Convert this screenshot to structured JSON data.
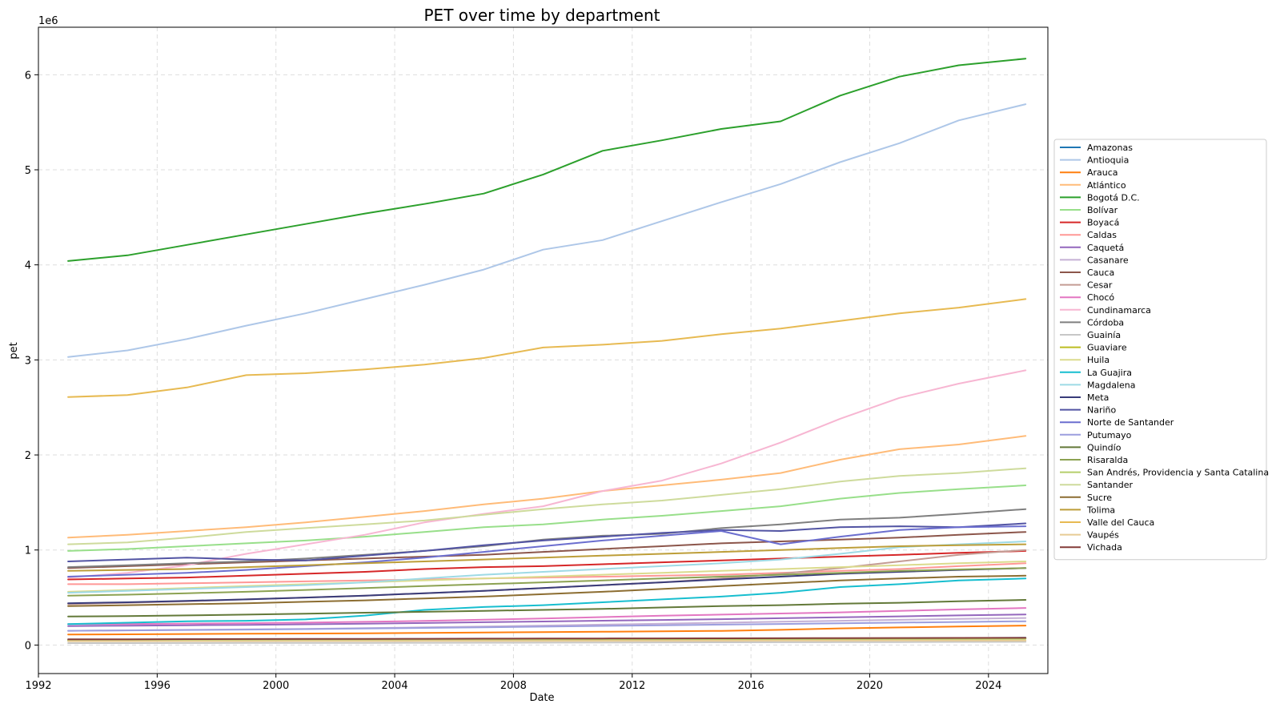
{
  "chart_data": {
    "type": "line",
    "title": "PET over time by department",
    "xlabel": "Date",
    "ylabel": "pet",
    "y_offset_label": "1e6",
    "x_ticks": [
      "1992",
      "1996",
      "2000",
      "2004",
      "2008",
      "2012",
      "2016",
      "2020",
      "2024"
    ],
    "y_ticks": [
      "0",
      "1",
      "2",
      "3",
      "4",
      "5",
      "6"
    ],
    "xlim": [
      1992.0,
      2026.0
    ],
    "ylim": [
      -300000,
      6500000
    ],
    "grid": true,
    "legend_position": "right",
    "x": [
      1993,
      1995,
      1997,
      1999,
      2001,
      2003,
      2005,
      2007,
      2009,
      2011,
      2013,
      2015,
      2017,
      2019,
      2021,
      2023,
      2025.25
    ],
    "series": [
      {
        "name": "Amazonas",
        "color": "#1f77b4",
        "values": [
          46000,
          47000,
          48000,
          49000,
          50000,
          51000,
          53000,
          55000,
          57000,
          59000,
          61000,
          63000,
          65000,
          68000,
          71000,
          74000,
          77000
        ]
      },
      {
        "name": "Antioquia",
        "color": "#aec7e8",
        "values": [
          3030000,
          3100000,
          3220000,
          3360000,
          3490000,
          3640000,
          3790000,
          3950000,
          4160000,
          4260000,
          4460000,
          4660000,
          4850000,
          5080000,
          5280000,
          5520000,
          5690000
        ]
      },
      {
        "name": "Arauca",
        "color": "#ff7f0e",
        "values": [
          110000,
          113000,
          116000,
          119000,
          121000,
          124000,
          128000,
          132000,
          136000,
          140000,
          144000,
          149000,
          160000,
          175000,
          185000,
          195000,
          205000
        ]
      },
      {
        "name": "Atlántico",
        "color": "#ffbb78",
        "values": [
          1130000,
          1160000,
          1200000,
          1240000,
          1290000,
          1350000,
          1410000,
          1480000,
          1540000,
          1620000,
          1680000,
          1740000,
          1810000,
          1950000,
          2060000,
          2110000,
          2200000
        ]
      },
      {
        "name": "Bogotá D.C.",
        "color": "#2ca02c",
        "values": [
          4040000,
          4100000,
          4210000,
          4320000,
          4430000,
          4540000,
          4640000,
          4750000,
          4950000,
          5200000,
          5310000,
          5430000,
          5510000,
          5780000,
          5980000,
          6100000,
          6170000
        ]
      },
      {
        "name": "Bolívar",
        "color": "#98df8a",
        "values": [
          990000,
          1010000,
          1040000,
          1070000,
          1100000,
          1140000,
          1190000,
          1240000,
          1270000,
          1320000,
          1360000,
          1410000,
          1460000,
          1540000,
          1600000,
          1640000,
          1680000
        ]
      },
      {
        "name": "Boyacá",
        "color": "#d62728",
        "values": [
          690000,
          700000,
          710000,
          730000,
          750000,
          770000,
          800000,
          820000,
          830000,
          850000,
          870000,
          890000,
          910000,
          930000,
          950000,
          970000,
          990000
        ]
      },
      {
        "name": "Caldas",
        "color": "#ff9896",
        "values": [
          640000,
          640000,
          650000,
          660000,
          670000,
          680000,
          690000,
          700000,
          710000,
          720000,
          730000,
          740000,
          760000,
          780000,
          800000,
          830000,
          860000
        ]
      },
      {
        "name": "Caquetá",
        "color": "#9467bd",
        "values": [
          200000,
          204000,
          208000,
          212000,
          218000,
          225000,
          232000,
          240000,
          248000,
          256000,
          264000,
          272000,
          282000,
          292000,
          302000,
          312000,
          322000
        ]
      },
      {
        "name": "Casanare",
        "color": "#c5b0d5",
        "values": [
          150000,
          155000,
          160000,
          165000,
          170000,
          178000,
          186000,
          195000,
          205000,
          215000,
          225000,
          235000,
          245000,
          255000,
          265000,
          275000,
          285000
        ]
      },
      {
        "name": "Cauca",
        "color": "#8c564b",
        "values": [
          810000,
          830000,
          850000,
          870000,
          890000,
          910000,
          930000,
          950000,
          980000,
          1010000,
          1040000,
          1070000,
          1090000,
          1110000,
          1130000,
          1160000,
          1190000
        ]
      },
      {
        "name": "Cesar",
        "color": "#c49c94",
        "values": [
          430000,
          445000,
          460000,
          480000,
          500000,
          520000,
          545000,
          570000,
          600000,
          630000,
          660000,
          700000,
          750000,
          810000,
          880000,
          950000,
          1000000
        ]
      },
      {
        "name": "Chocó",
        "color": "#e377c2",
        "values": [
          220000,
          222000,
          226000,
          230000,
          236000,
          244000,
          254000,
          266000,
          280000,
          294000,
          308000,
          320000,
          332000,
          344000,
          360000,
          375000,
          390000
        ]
      },
      {
        "name": "Cundinamarca",
        "color": "#f7b6d2",
        "values": [
          710000,
          760000,
          840000,
          960000,
          1060000,
          1160000,
          1290000,
          1380000,
          1460000,
          1620000,
          1730000,
          1910000,
          2130000,
          2380000,
          2600000,
          2750000,
          2890000
        ]
      },
      {
        "name": "Córdoba",
        "color": "#7f7f7f",
        "values": [
          820000,
          840000,
          860000,
          880000,
          910000,
          950000,
          990000,
          1040000,
          1110000,
          1150000,
          1170000,
          1230000,
          1270000,
          1320000,
          1340000,
          1380000,
          1430000
        ]
      },
      {
        "name": "Guainía",
        "color": "#c7c7c7",
        "values": [
          20000,
          20500,
          21000,
          21500,
          22000,
          22800,
          23600,
          24500,
          25500,
          26500,
          27500,
          28500,
          29500,
          30500,
          31500,
          32500,
          33500
        ]
      },
      {
        "name": "Guaviare",
        "color": "#bcbd22",
        "values": [
          50000,
          51000,
          52000,
          53000,
          54000,
          55000,
          56000,
          57000,
          58000,
          59000,
          60000,
          61000,
          62000,
          63000,
          64000,
          65000,
          66000
        ]
      },
      {
        "name": "Huila",
        "color": "#dbdb8d",
        "values": [
          560000,
          580000,
          600000,
          620000,
          640000,
          660000,
          680000,
          700000,
          720000,
          740000,
          760000,
          780000,
          800000,
          820000,
          840000,
          860000,
          880000
        ]
      },
      {
        "name": "La Guajira",
        "color": "#17becf",
        "values": [
          220000,
          235000,
          250000,
          255000,
          270000,
          310000,
          370000,
          400000,
          420000,
          450000,
          480000,
          510000,
          550000,
          610000,
          640000,
          680000,
          700000
        ]
      },
      {
        "name": "Magdalena",
        "color": "#9edae5",
        "values": [
          550000,
          570000,
          590000,
          610000,
          630000,
          660000,
          700000,
          740000,
          770000,
          800000,
          830000,
          860000,
          900000,
          960000,
          1030000,
          1060000,
          1090000
        ]
      },
      {
        "name": "Meta",
        "color": "#393b79",
        "values": [
          440000,
          450000,
          465000,
          480000,
          500000,
          520000,
          545000,
          570000,
          600000,
          630000,
          660000,
          690000,
          720000,
          750000,
          770000,
          790000,
          810000
        ]
      },
      {
        "name": "Nariño",
        "color": "#5254a3",
        "values": [
          880000,
          900000,
          920000,
          900000,
          890000,
          940000,
          990000,
          1050000,
          1100000,
          1140000,
          1180000,
          1210000,
          1200000,
          1240000,
          1250000,
          1240000,
          1280000
        ]
      },
      {
        "name": "Norte de Santander",
        "color": "#6b6ecf",
        "values": [
          720000,
          740000,
          760000,
          790000,
          830000,
          870000,
          920000,
          980000,
          1040000,
          1100000,
          1150000,
          1200000,
          1060000,
          1140000,
          1210000,
          1240000,
          1250000
        ]
      },
      {
        "name": "Putumayo",
        "color": "#9c9ede",
        "values": [
          150000,
          154000,
          158000,
          163000,
          168000,
          174000,
          180000,
          187000,
          194000,
          201000,
          208000,
          215000,
          222000,
          229000,
          236000,
          243000,
          250000
        ]
      },
      {
        "name": "Quindío",
        "color": "#637939",
        "values": [
          300000,
          305000,
          312000,
          320000,
          330000,
          340000,
          350000,
          360000,
          370000,
          380000,
          395000,
          410000,
          420000,
          435000,
          445000,
          460000,
          475000
        ]
      },
      {
        "name": "Risaralda",
        "color": "#8ca252",
        "values": [
          520000,
          530000,
          545000,
          560000,
          580000,
          600000,
          620000,
          640000,
          660000,
          680000,
          700000,
          720000,
          740000,
          760000,
          780000,
          795000,
          810000
        ]
      },
      {
        "name": "San Andrés, Providencia y Santa Catalina",
        "color": "#b5cf6b",
        "values": [
          50000,
          51000,
          52000,
          53000,
          54000,
          55000,
          56000,
          57000,
          58000,
          59000,
          60000,
          61000,
          62000,
          63000,
          64000,
          65000,
          66000
        ]
      },
      {
        "name": "Santander",
        "color": "#cedb9c",
        "values": [
          1060000,
          1080000,
          1130000,
          1190000,
          1230000,
          1270000,
          1310000,
          1370000,
          1430000,
          1480000,
          1520000,
          1580000,
          1640000,
          1720000,
          1780000,
          1810000,
          1860000
        ]
      },
      {
        "name": "Sucre",
        "color": "#8c6d31",
        "values": [
          410000,
          420000,
          430000,
          440000,
          455000,
          470000,
          490000,
          510000,
          535000,
          560000,
          590000,
          620000,
          650000,
          680000,
          700000,
          720000,
          730000
        ]
      },
      {
        "name": "Tolima",
        "color": "#bd9e39",
        "values": [
          780000,
          790000,
          800000,
          820000,
          840000,
          860000,
          880000,
          900000,
          920000,
          940000,
          960000,
          980000,
          1000000,
          1020000,
          1040000,
          1050000,
          1060000
        ]
      },
      {
        "name": "Valle del Cauca",
        "color": "#e7ba52",
        "values": [
          2610000,
          2630000,
          2710000,
          2840000,
          2860000,
          2900000,
          2950000,
          3020000,
          3130000,
          3160000,
          3200000,
          3270000,
          3330000,
          3410000,
          3490000,
          3550000,
          3640000
        ]
      },
      {
        "name": "Vaupés",
        "color": "#e7cb94",
        "values": [
          40000,
          40500,
          41000,
          41500,
          42000,
          42500,
          43000,
          43500,
          44000,
          44500,
          45000,
          45500,
          46000,
          46500,
          47000,
          47500,
          48000
        ]
      },
      {
        "name": "Vichada",
        "color": "#843c39",
        "values": [
          60000,
          61000,
          62000,
          63000,
          64000,
          65000,
          66000,
          67000,
          68000,
          69000,
          70000,
          71000,
          72000,
          73000,
          74000,
          75000,
          76000
        ]
      }
    ]
  }
}
